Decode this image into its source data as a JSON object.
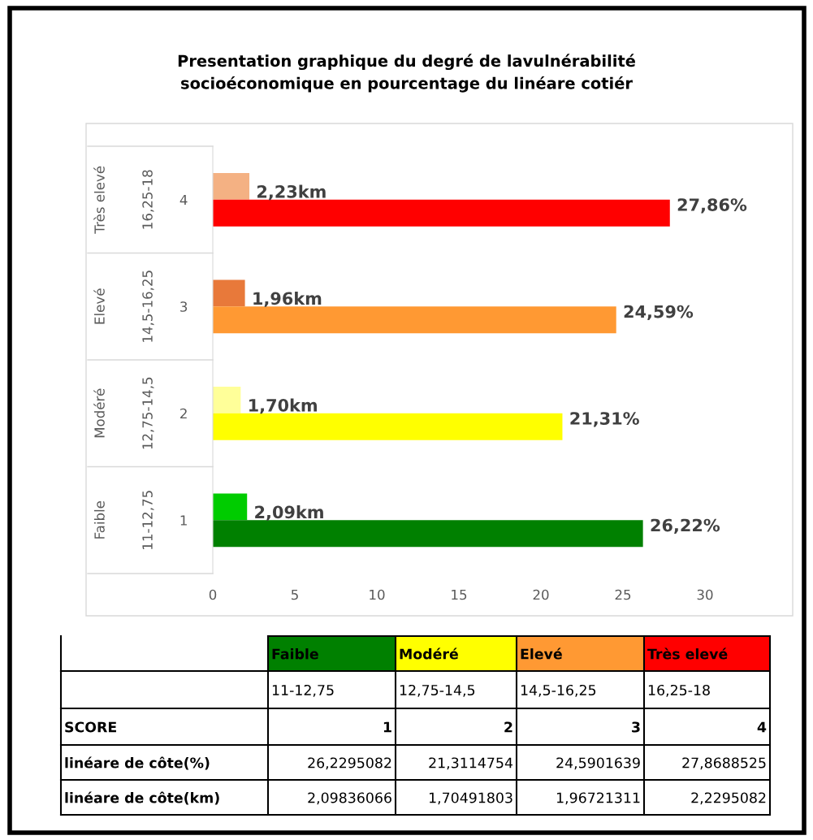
{
  "chart_data": {
    "type": "bar",
    "orientation": "horizontal",
    "title": "Presentation graphique du degré de lavulnérabilité\nsocioéconomique en pourcentage du linéare cotiér",
    "categories": [
      "4",
      "3",
      "2",
      "1"
    ],
    "series": [
      {
        "colors": [
          "#f4b183",
          "#e8793a",
          "#ffff99",
          "#00cc00"
        ],
        "values": [
          2.23,
          1.96,
          1.7,
          2.09
        ],
        "value_labels": [
          "2,23km",
          "1,96km",
          "1,70km",
          "2,09km"
        ]
      },
      {
        "colors": [
          "#ff0000",
          "#ff9933",
          "#ffff00",
          "#008000"
        ],
        "values": [
          27.86,
          24.59,
          21.31,
          26.22
        ],
        "value_labels": [
          "27,86%",
          "24,59%",
          "21,31%",
          "26,22%"
        ]
      }
    ],
    "annotations": [
      "Très elevé",
      "16,25-18",
      "Elevé",
      "14,5-16,25",
      "Modéré",
      "12,75-14,5",
      "Faible",
      "11-12,75",
      "SCORE",
      "linéare de côte(%)",
      "linéare de côte(km)",
      "26,2295082",
      "21,3114754",
      "24,5901639",
      "27,8688525",
      "2,09836066",
      "1,70491803",
      "1,96721311",
      "2,2295082"
    ],
    "xlim": [
      0,
      30
    ],
    "xticks": [
      0,
      5,
      10,
      15,
      20,
      25,
      30
    ],
    "grid": false,
    "legend": false
  }
}
